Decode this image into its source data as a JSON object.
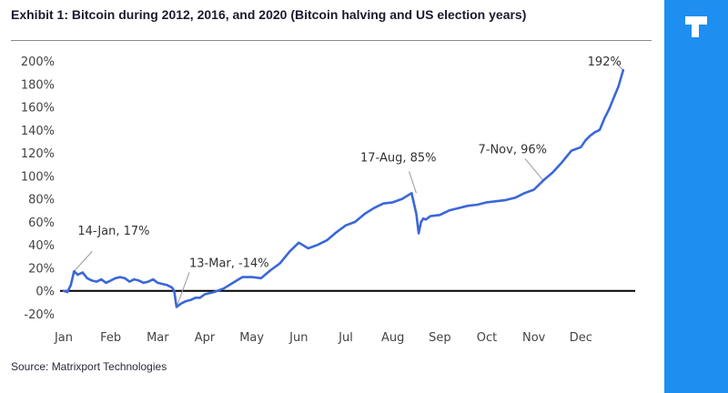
{
  "header": {
    "title": "Exhibit 1: Bitcoin during 2012, 2016, and 2020 (Bitcoin halving and US election years)"
  },
  "footer": {
    "source": "Source: Matrixport Technologies"
  },
  "brand": {
    "sidebar_color": "#1e8ef0",
    "logo_icon": "brand-logo-icon"
  },
  "chart_data": {
    "type": "line",
    "title": "",
    "xlabel": "",
    "ylabel": "",
    "ylim": [
      -20,
      200
    ],
    "xlim": [
      0,
      12
    ],
    "grid": false,
    "legend": "none",
    "line_color": "#3b67d8",
    "zero_line": true,
    "y_ticks": [
      "-20%",
      "0%",
      "20%",
      "40%",
      "60%",
      "80%",
      "100%",
      "120%",
      "140%",
      "160%",
      "180%",
      "200%"
    ],
    "y_tick_values": [
      -20,
      0,
      20,
      40,
      60,
      80,
      100,
      120,
      140,
      160,
      180,
      200
    ],
    "x_ticks": [
      "Jan",
      "Feb",
      "Mar",
      "Apr",
      "May",
      "Jun",
      "Jul",
      "Aug",
      "Sep",
      "Oct",
      "Nov",
      "Dec"
    ],
    "x_tick_values": [
      0,
      1,
      2,
      3,
      4,
      5,
      6,
      7,
      8,
      9,
      10,
      11
    ],
    "series": [
      {
        "x": [
          0,
          0.08,
          0.15,
          0.22,
          0.3,
          0.4,
          0.5,
          0.6,
          0.7,
          0.8,
          0.9,
          1.0,
          1.1,
          1.2,
          1.3,
          1.4,
          1.5,
          1.6,
          1.7,
          1.8,
          1.9,
          2.0,
          2.1,
          2.2,
          2.3,
          2.35,
          2.4,
          2.5,
          2.6,
          2.7,
          2.8,
          2.9,
          3.0,
          3.2,
          3.4,
          3.6,
          3.8,
          4.0,
          4.2,
          4.4,
          4.6,
          4.8,
          5.0,
          5.2,
          5.4,
          5.6,
          5.8,
          6.0,
          6.2,
          6.4,
          6.6,
          6.8,
          7.0,
          7.2,
          7.4,
          7.5,
          7.55,
          7.6,
          7.65,
          7.7,
          7.8,
          8.0,
          8.2,
          8.4,
          8.6,
          8.8,
          9.0,
          9.2,
          9.4,
          9.6,
          9.8,
          10.0,
          10.2,
          10.4,
          10.6,
          10.8,
          11.0,
          11.1,
          11.2,
          11.3,
          11.4,
          11.5,
          11.6,
          11.7,
          11.8,
          11.9
        ],
        "values": [
          0,
          -1,
          5,
          17,
          14,
          16,
          11,
          9,
          8,
          10,
          7,
          9,
          11,
          12,
          11,
          8,
          10,
          9,
          7,
          8,
          10,
          7,
          6,
          5,
          3,
          0,
          -14,
          -11,
          -9,
          -8,
          -6,
          -6,
          -3,
          -1,
          2,
          7,
          12,
          12,
          11,
          18,
          24,
          34,
          42,
          37,
          40,
          44,
          51,
          57,
          60,
          67,
          72,
          76,
          77,
          80,
          85,
          67,
          50,
          60,
          63,
          62,
          65,
          66,
          70,
          72,
          74,
          75,
          77,
          78,
          79,
          81,
          85,
          88,
          96,
          103,
          112,
          122,
          125,
          131,
          135,
          138,
          140,
          150,
          158,
          168,
          178,
          192
        ]
      }
    ],
    "annotations": [
      {
        "text": "14-Jan, 17%",
        "x": 0.22,
        "y": 17
      },
      {
        "text": "13-Mar, -14%",
        "x": 2.4,
        "y": -14
      },
      {
        "text": "17-Aug, 85%",
        "x": 7.5,
        "y": 85
      },
      {
        "text": "7-Nov, 96%",
        "x": 10.2,
        "y": 96
      },
      {
        "text": "192%",
        "x": 11.9,
        "y": 192
      }
    ]
  }
}
